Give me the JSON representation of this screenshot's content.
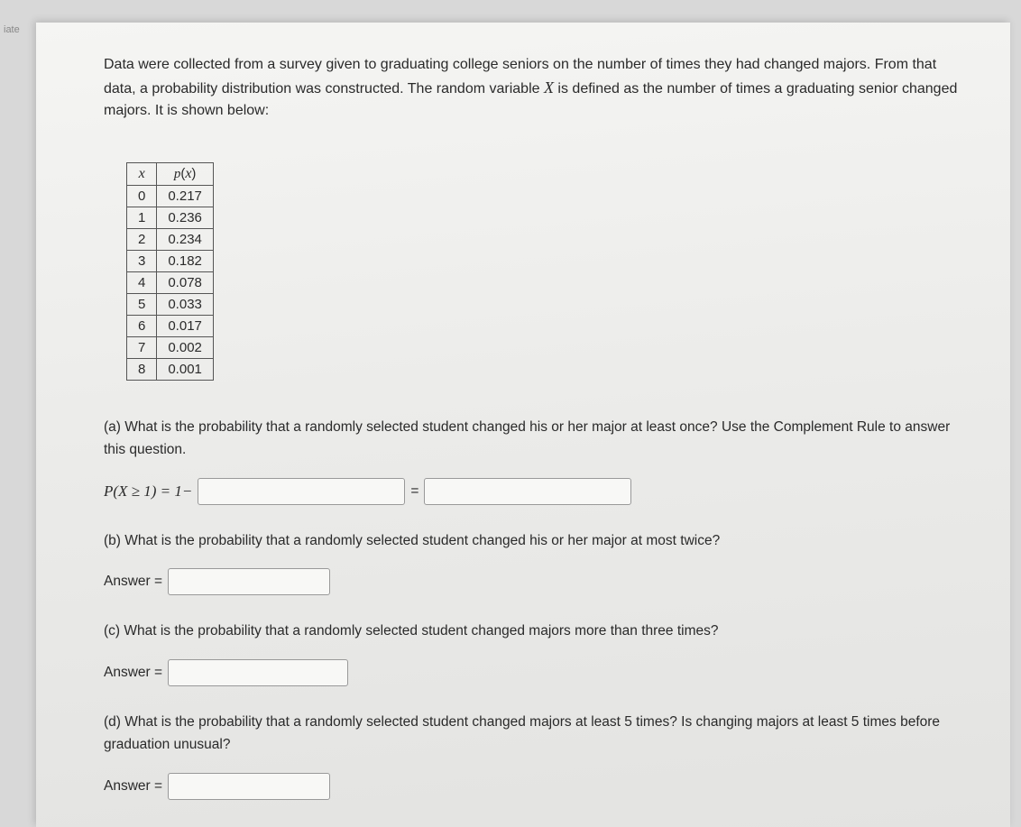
{
  "corner_label": "iate",
  "problem_statement": "Data were collected from a survey given to graduating college seniors on the number of times they had changed majors. From that data, a probability distribution was constructed. The random variable X is defined as the number of times a graduating senior changed majors. It is shown below:",
  "table": {
    "headers": {
      "x": "x",
      "px": "p(x)"
    },
    "rows": [
      {
        "x": "0",
        "px": "0.217"
      },
      {
        "x": "1",
        "px": "0.236"
      },
      {
        "x": "2",
        "px": "0.234"
      },
      {
        "x": "3",
        "px": "0.182"
      },
      {
        "x": "4",
        "px": "0.078"
      },
      {
        "x": "5",
        "px": "0.033"
      },
      {
        "x": "6",
        "px": "0.017"
      },
      {
        "x": "7",
        "px": "0.002"
      },
      {
        "x": "8",
        "px": "0.001"
      }
    ]
  },
  "questions": {
    "a": {
      "text": "(a) What is the probability that a randomly selected student changed his or her major at least once? Use the Complement Rule to answer this question.",
      "formula_prefix": "P(X ≥ 1) = 1−",
      "equals": "="
    },
    "b": {
      "text": "(b) What is the probability that a randomly selected student changed his or her major at most twice?",
      "answer_label": "Answer ="
    },
    "c": {
      "text": "(c) What is the probability that a randomly selected student changed majors more than three times?",
      "answer_label": "Answer ="
    },
    "d": {
      "text": "(d) What is the probability that a randomly selected student changed majors at least 5 times? Is changing majors at least 5 times before graduation unusual?",
      "answer_label": "Answer ="
    }
  }
}
